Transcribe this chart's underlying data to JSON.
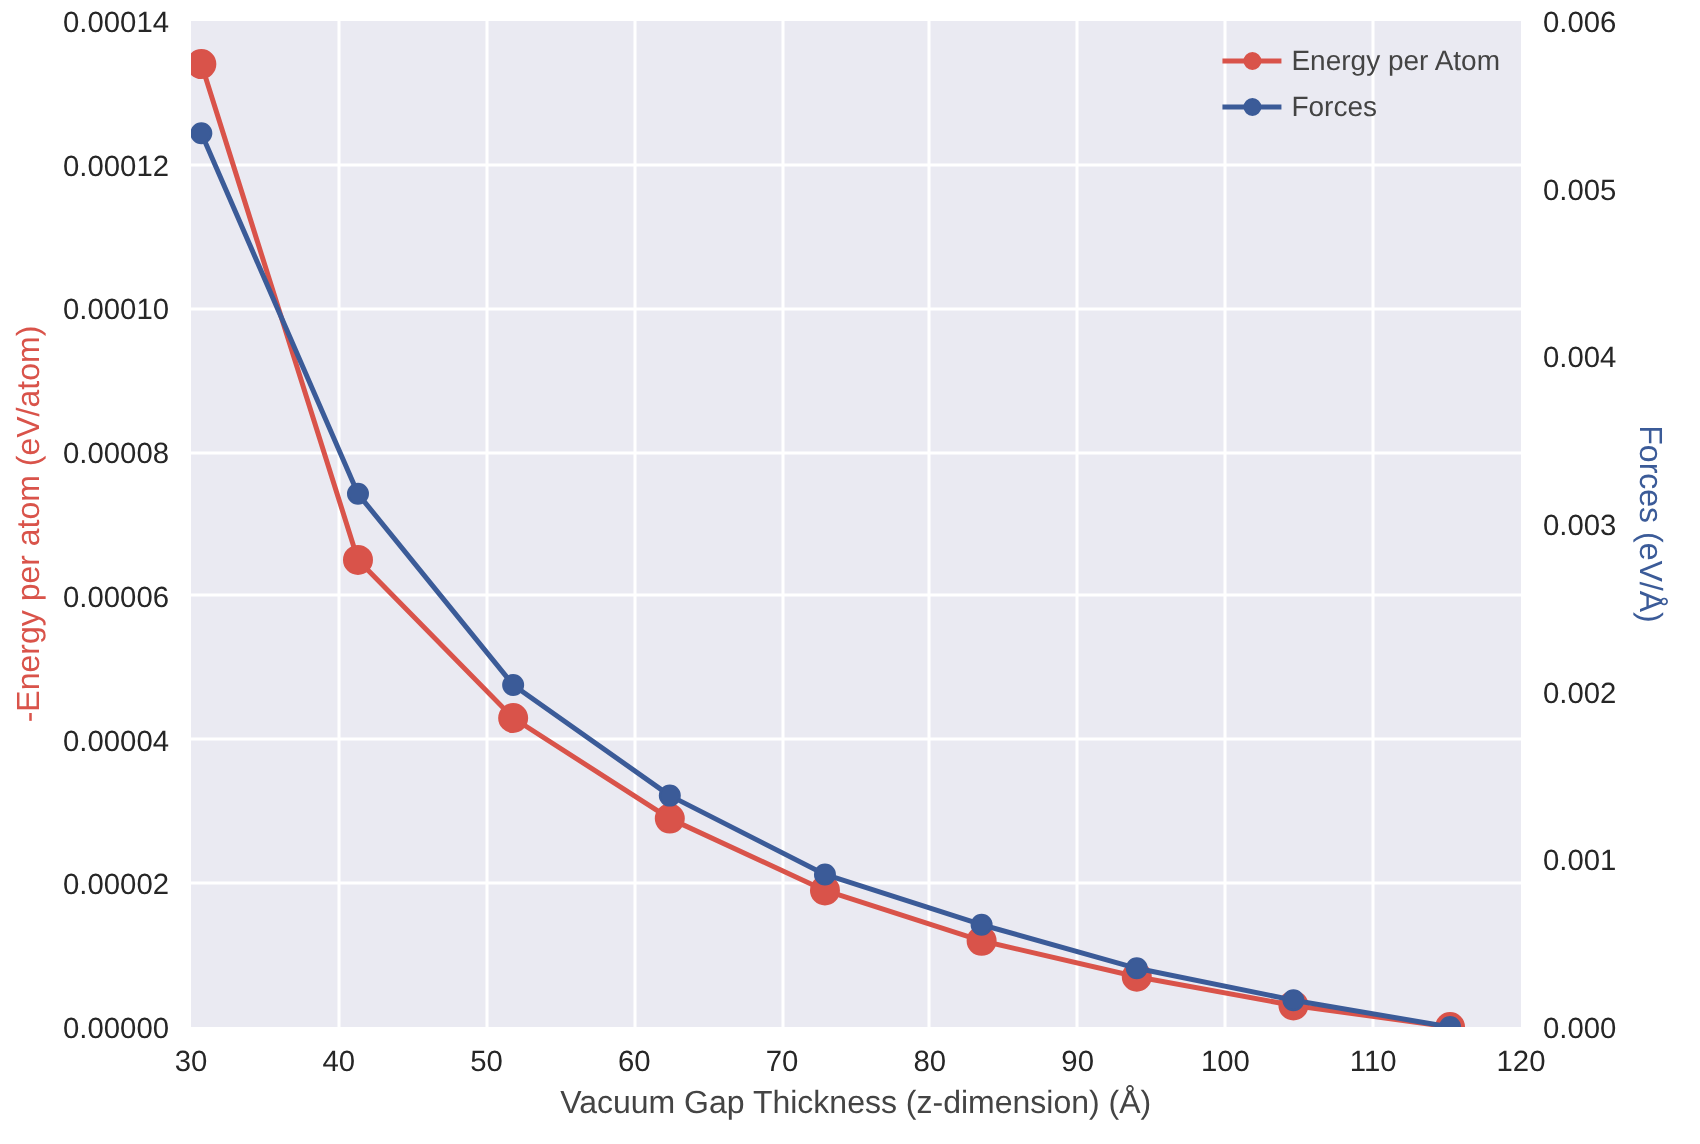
{
  "chart_data": {
    "type": "line",
    "xlabel": "Vacuum Gap Thickness (z-dimension) (Å)",
    "ylabel": "-Energy per atom (eV/atom)",
    "y2label": "Forces (eV/Å)",
    "x": [
      30.7,
      41.3,
      51.8,
      62.4,
      72.9,
      83.5,
      94.0,
      104.6,
      115.2
    ],
    "series": [
      {
        "name": "Energy per Atom",
        "color": "#d9534a",
        "values": [
          0.000134,
          6.5e-05,
          4.3e-05,
          2.9e-05,
          1.9e-05,
          1.2e-05,
          7e-06,
          3e-06,
          0.0
        ]
      },
      {
        "name": "Forces",
        "color": "#3b5b98",
        "axis": "y2",
        "values": [
          0.00533,
          0.00318,
          0.00204,
          0.00138,
          0.00091,
          0.00061,
          0.00035,
          0.00016,
          0.0
        ]
      }
    ],
    "xlim": [
      30,
      120
    ],
    "xticks": [
      30,
      40,
      50,
      60,
      70,
      80,
      90,
      100,
      110,
      120
    ],
    "ylim": [
      0,
      0.00014
    ],
    "yticks": [
      {
        "value": 0,
        "label": "0.00000"
      },
      {
        "value": 2e-05,
        "label": "0.00002"
      },
      {
        "value": 4e-05,
        "label": "0.00004"
      },
      {
        "value": 6e-05,
        "label": "0.00006"
      },
      {
        "value": 8e-05,
        "label": "0.00008"
      },
      {
        "value": 0.0001,
        "label": "0.00010"
      },
      {
        "value": 0.00012,
        "label": "0.00012"
      },
      {
        "value": 0.00014,
        "label": "0.00014"
      }
    ],
    "y2lim": [
      0,
      0.006
    ],
    "y2ticks": [
      {
        "value": 0,
        "label": "0.000"
      },
      {
        "value": 0.001,
        "label": "0.001"
      },
      {
        "value": 0.002,
        "label": "0.002"
      },
      {
        "value": 0.003,
        "label": "0.003"
      },
      {
        "value": 0.004,
        "label": "0.004"
      },
      {
        "value": 0.005,
        "label": "0.005"
      },
      {
        "value": 0.006,
        "label": "0.006"
      }
    ],
    "grid": true,
    "legend": "top right",
    "marker": "circle",
    "line_style": "solid"
  }
}
